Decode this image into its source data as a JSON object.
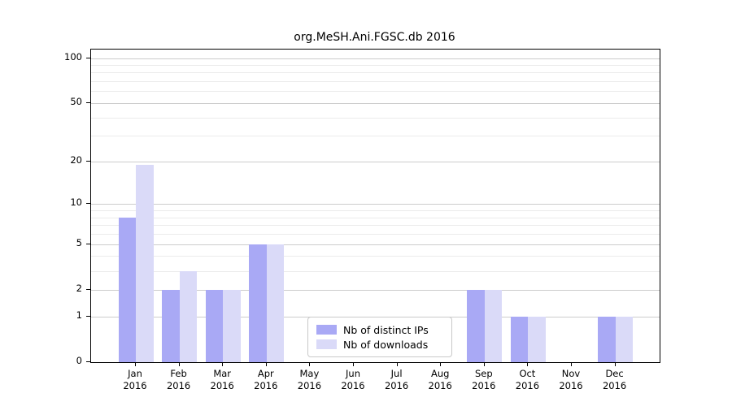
{
  "title": "org.MeSH.Ani.FGSC.db 2016",
  "chart_data": {
    "type": "bar",
    "title": "org.MeSH.Ani.FGSC.db 2016",
    "categories": [
      "Jan",
      "Feb",
      "Mar",
      "Apr",
      "May",
      "Jun",
      "Jul",
      "Aug",
      "Sep",
      "Oct",
      "Nov",
      "Dec"
    ],
    "year_label": "2016",
    "series": [
      {
        "name": "Nb of distinct IPs",
        "color": "#a9a9f5",
        "values": [
          8,
          2,
          2,
          5,
          0,
          0,
          0,
          0,
          2,
          1,
          0,
          1
        ]
      },
      {
        "name": "Nb of downloads",
        "color": "#dadaf8",
        "values": [
          19,
          3,
          2,
          5,
          0,
          0,
          0,
          0,
          2,
          1,
          0,
          1
        ]
      }
    ],
    "yscale": "log1p",
    "yticks": [
      0,
      1,
      2,
      5,
      10,
      20,
      50,
      100
    ],
    "yticks_minor": [
      3,
      4,
      6,
      7,
      8,
      9,
      30,
      40,
      60,
      70,
      80,
      90
    ],
    "ylim": [
      0,
      114
    ],
    "xlabel": "",
    "ylabel": "",
    "grid": "horizontal",
    "legend_position": "inside lower-center",
    "colors": {
      "major_grid": "#cccccc",
      "minor_grid": "#ebebeb",
      "axis": "#000000",
      "legend_border": "#c9c9c9",
      "background": "#ffffff"
    }
  }
}
